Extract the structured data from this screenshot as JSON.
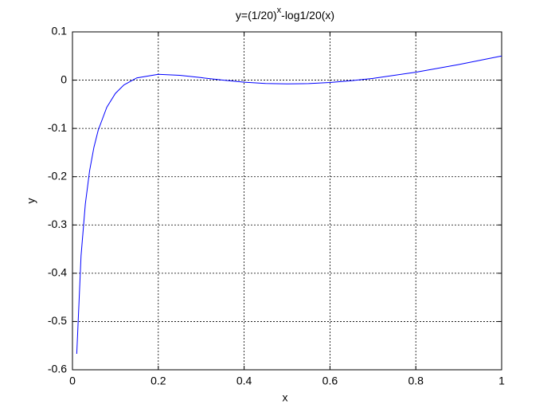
{
  "chart_data": {
    "type": "line",
    "title": [
      "y=(1/20)",
      "x",
      "-log1/20(x)"
    ],
    "x_label": "x",
    "y_label": "y",
    "x": [
      0.01,
      0.02,
      0.03,
      0.04,
      0.05,
      0.06,
      0.08,
      0.1,
      0.12,
      0.15,
      0.2,
      0.25,
      0.3,
      0.35,
      0.4,
      0.45,
      0.5,
      0.55,
      0.6,
      0.65,
      0.7,
      0.8,
      0.9,
      1.0
    ],
    "series": [
      {
        "color": "#0000ff",
        "values": [
          -0.567,
          -0.364,
          -0.2565,
          -0.1874,
          -0.1391,
          -0.1037,
          -0.0562,
          -0.0275,
          -0.0098,
          0.0047,
          0.0121,
          0.0101,
          0.0052,
          0.0001,
          -0.0042,
          -0.0069,
          -0.0078,
          -0.0071,
          -0.0048,
          -0.0011,
          0.0037,
          0.0165,
          0.0323,
          0.05
        ]
      }
    ],
    "xlim": [
      0,
      1
    ],
    "ylim": [
      -0.6,
      0.1
    ],
    "xticks": [
      0,
      0.2,
      0.4,
      0.6,
      0.8,
      1
    ],
    "yticks": [
      0.1,
      0,
      -0.1,
      -0.2,
      -0.3,
      -0.4,
      -0.5,
      -0.6
    ],
    "grid": true
  }
}
